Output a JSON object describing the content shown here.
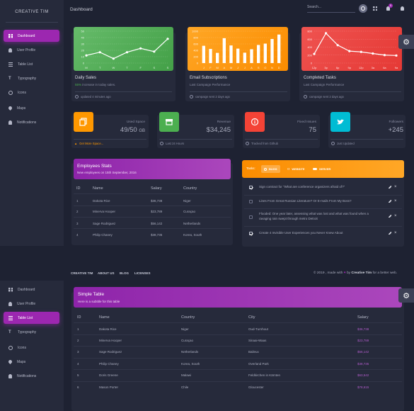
{
  "brand": "CREATIVE TIM",
  "nav": [
    {
      "label": "Dashboard",
      "icon": "dashboard-icon"
    },
    {
      "label": "User Profile",
      "icon": "person-icon"
    },
    {
      "label": "Table List",
      "icon": "list-icon"
    },
    {
      "label": "Typography",
      "icon": "typography-icon"
    },
    {
      "label": "Icons",
      "icon": "bubble-icon"
    },
    {
      "label": "Maps",
      "icon": "location-icon"
    },
    {
      "label": "Notifications",
      "icon": "bell-icon"
    }
  ],
  "topbar": {
    "title": "Dashboard",
    "search_placeholder": "Search...",
    "notification_count": "5"
  },
  "charts": {
    "daily_sales": {
      "title": "Daily Sales",
      "sub_highlight": "55%",
      "sub_rest": " increase in today sales.",
      "footer": "updated 4 minutes ago",
      "color": "#4caf50",
      "chart_data": {
        "type": "line",
        "categories": [
          "M",
          "T",
          "W",
          "T",
          "F",
          "S",
          "S"
        ],
        "values": [
          12,
          17,
          7,
          17,
          23,
          18,
          38
        ],
        "ylim": [
          0,
          50
        ],
        "yticks": [
          0,
          10,
          20,
          30,
          40,
          50
        ]
      }
    },
    "email_subscriptions": {
      "title": "Email Subscriptions",
      "sub": "Last Campaign Performance",
      "footer": "campaign sent 2 days ago",
      "color": "#ff9800",
      "chart_data": {
        "type": "bar",
        "categories": [
          "J",
          "F",
          "M",
          "A",
          "M",
          "J",
          "J",
          "A",
          "S",
          "O",
          "N",
          "D"
        ],
        "values": [
          542,
          443,
          320,
          780,
          553,
          453,
          326,
          434,
          568,
          610,
          756,
          895
        ],
        "ylim": [
          0,
          1000
        ],
        "yticks": [
          0,
          200,
          400,
          600,
          800,
          1000
        ]
      }
    },
    "completed_tasks": {
      "title": "Completed Tasks",
      "sub": "Last Campaign Performance",
      "footer": "campaign sent 2 days ago",
      "color": "#f44336",
      "chart_data": {
        "type": "line",
        "categories": [
          "12p",
          "3p",
          "6p",
          "9p",
          "12p",
          "3a",
          "6a",
          "9a"
        ],
        "values": [
          230,
          750,
          450,
          300,
          280,
          240,
          200,
          190
        ],
        "ylim": [
          0,
          800
        ],
        "yticks": [
          0,
          200,
          400,
          600,
          800
        ]
      }
    }
  },
  "stats": [
    {
      "label": "Used Space",
      "value": "49/50",
      "unit": "GB",
      "footer": "Get More Space...",
      "color": "#ff9800",
      "icon": "copy-icon"
    },
    {
      "label": "Revenue",
      "value": "$34,245",
      "unit": "",
      "footer": "Last 24 Hours",
      "color": "#4caf50",
      "icon": "store-icon"
    },
    {
      "label": "Fixed Issues",
      "value": "75",
      "unit": "",
      "footer": "Tracked from Github",
      "color": "#f44336",
      "icon": "info-icon"
    },
    {
      "label": "Followers",
      "value": "+245",
      "unit": "",
      "footer": "Just Updated",
      "color": "#00bcd4",
      "icon": "twitter-icon"
    }
  ],
  "employees": {
    "title": "Employees Stats",
    "sub": "New employees on 15th September, 2016",
    "headers": [
      "ID",
      "Name",
      "Salary",
      "Country"
    ],
    "rows": [
      [
        "1",
        "Dakota Rice",
        "$36,738",
        "Niger"
      ],
      [
        "2",
        "Minerva Hooper",
        "$23,789",
        "Curaçao"
      ],
      [
        "3",
        "Sage Rodriguez",
        "$56,142",
        "Netherlands"
      ],
      [
        "4",
        "Philip Chaney",
        "$38,735",
        "Korea, South"
      ]
    ]
  },
  "tasks": {
    "label": "Tasks:",
    "tabs": [
      "BUGS",
      "WEBSITE",
      "SERVER"
    ],
    "items": [
      {
        "text": "Sign contract for \"What are conference organizers afraid of?\"",
        "checked": true
      },
      {
        "text": "Lines From Great Russian Literature? Or E-mails From My Boss?",
        "checked": false
      },
      {
        "text": "Flooded: One year later, assessing what was lost and what was found when a ravaging rain swept through metro Detroit",
        "checked": false
      },
      {
        "text": "Create 4 Invisible User Experiences you Never Knew About",
        "checked": true
      }
    ]
  },
  "footer": {
    "links": [
      "CREATIVE TIM",
      "ABOUT US",
      "BLOG",
      "LICENSES"
    ],
    "copy_pre": "© 2019 , made with",
    "copy_by": "by",
    "copy_brand": "Creative Tim",
    "copy_post": "for a better web."
  },
  "simple_table": {
    "title": "Simple Table",
    "sub": "Here is a subtitle for this table",
    "headers": [
      "ID",
      "Name",
      "Country",
      "City",
      "Salary"
    ],
    "rows": [
      [
        "1",
        "Dakota Rice",
        "Niger",
        "Oud-Turnhout",
        "$36,738"
      ],
      [
        "2",
        "Minerva Hooper",
        "Curaçao",
        "Sinaai-Waas",
        "$23,789"
      ],
      [
        "3",
        "Sage Rodriguez",
        "Netherlands",
        "Baileux",
        "$56,142"
      ],
      [
        "4",
        "Philip Chaney",
        "Korea, South",
        "Overland Park",
        "$38,735"
      ],
      [
        "5",
        "Doris Greene",
        "Malawi",
        "Feldkirchen in Kärnten",
        "$63,542"
      ],
      [
        "6",
        "Mason Porter",
        "Chile",
        "Gloucester",
        "$78,615"
      ]
    ]
  }
}
